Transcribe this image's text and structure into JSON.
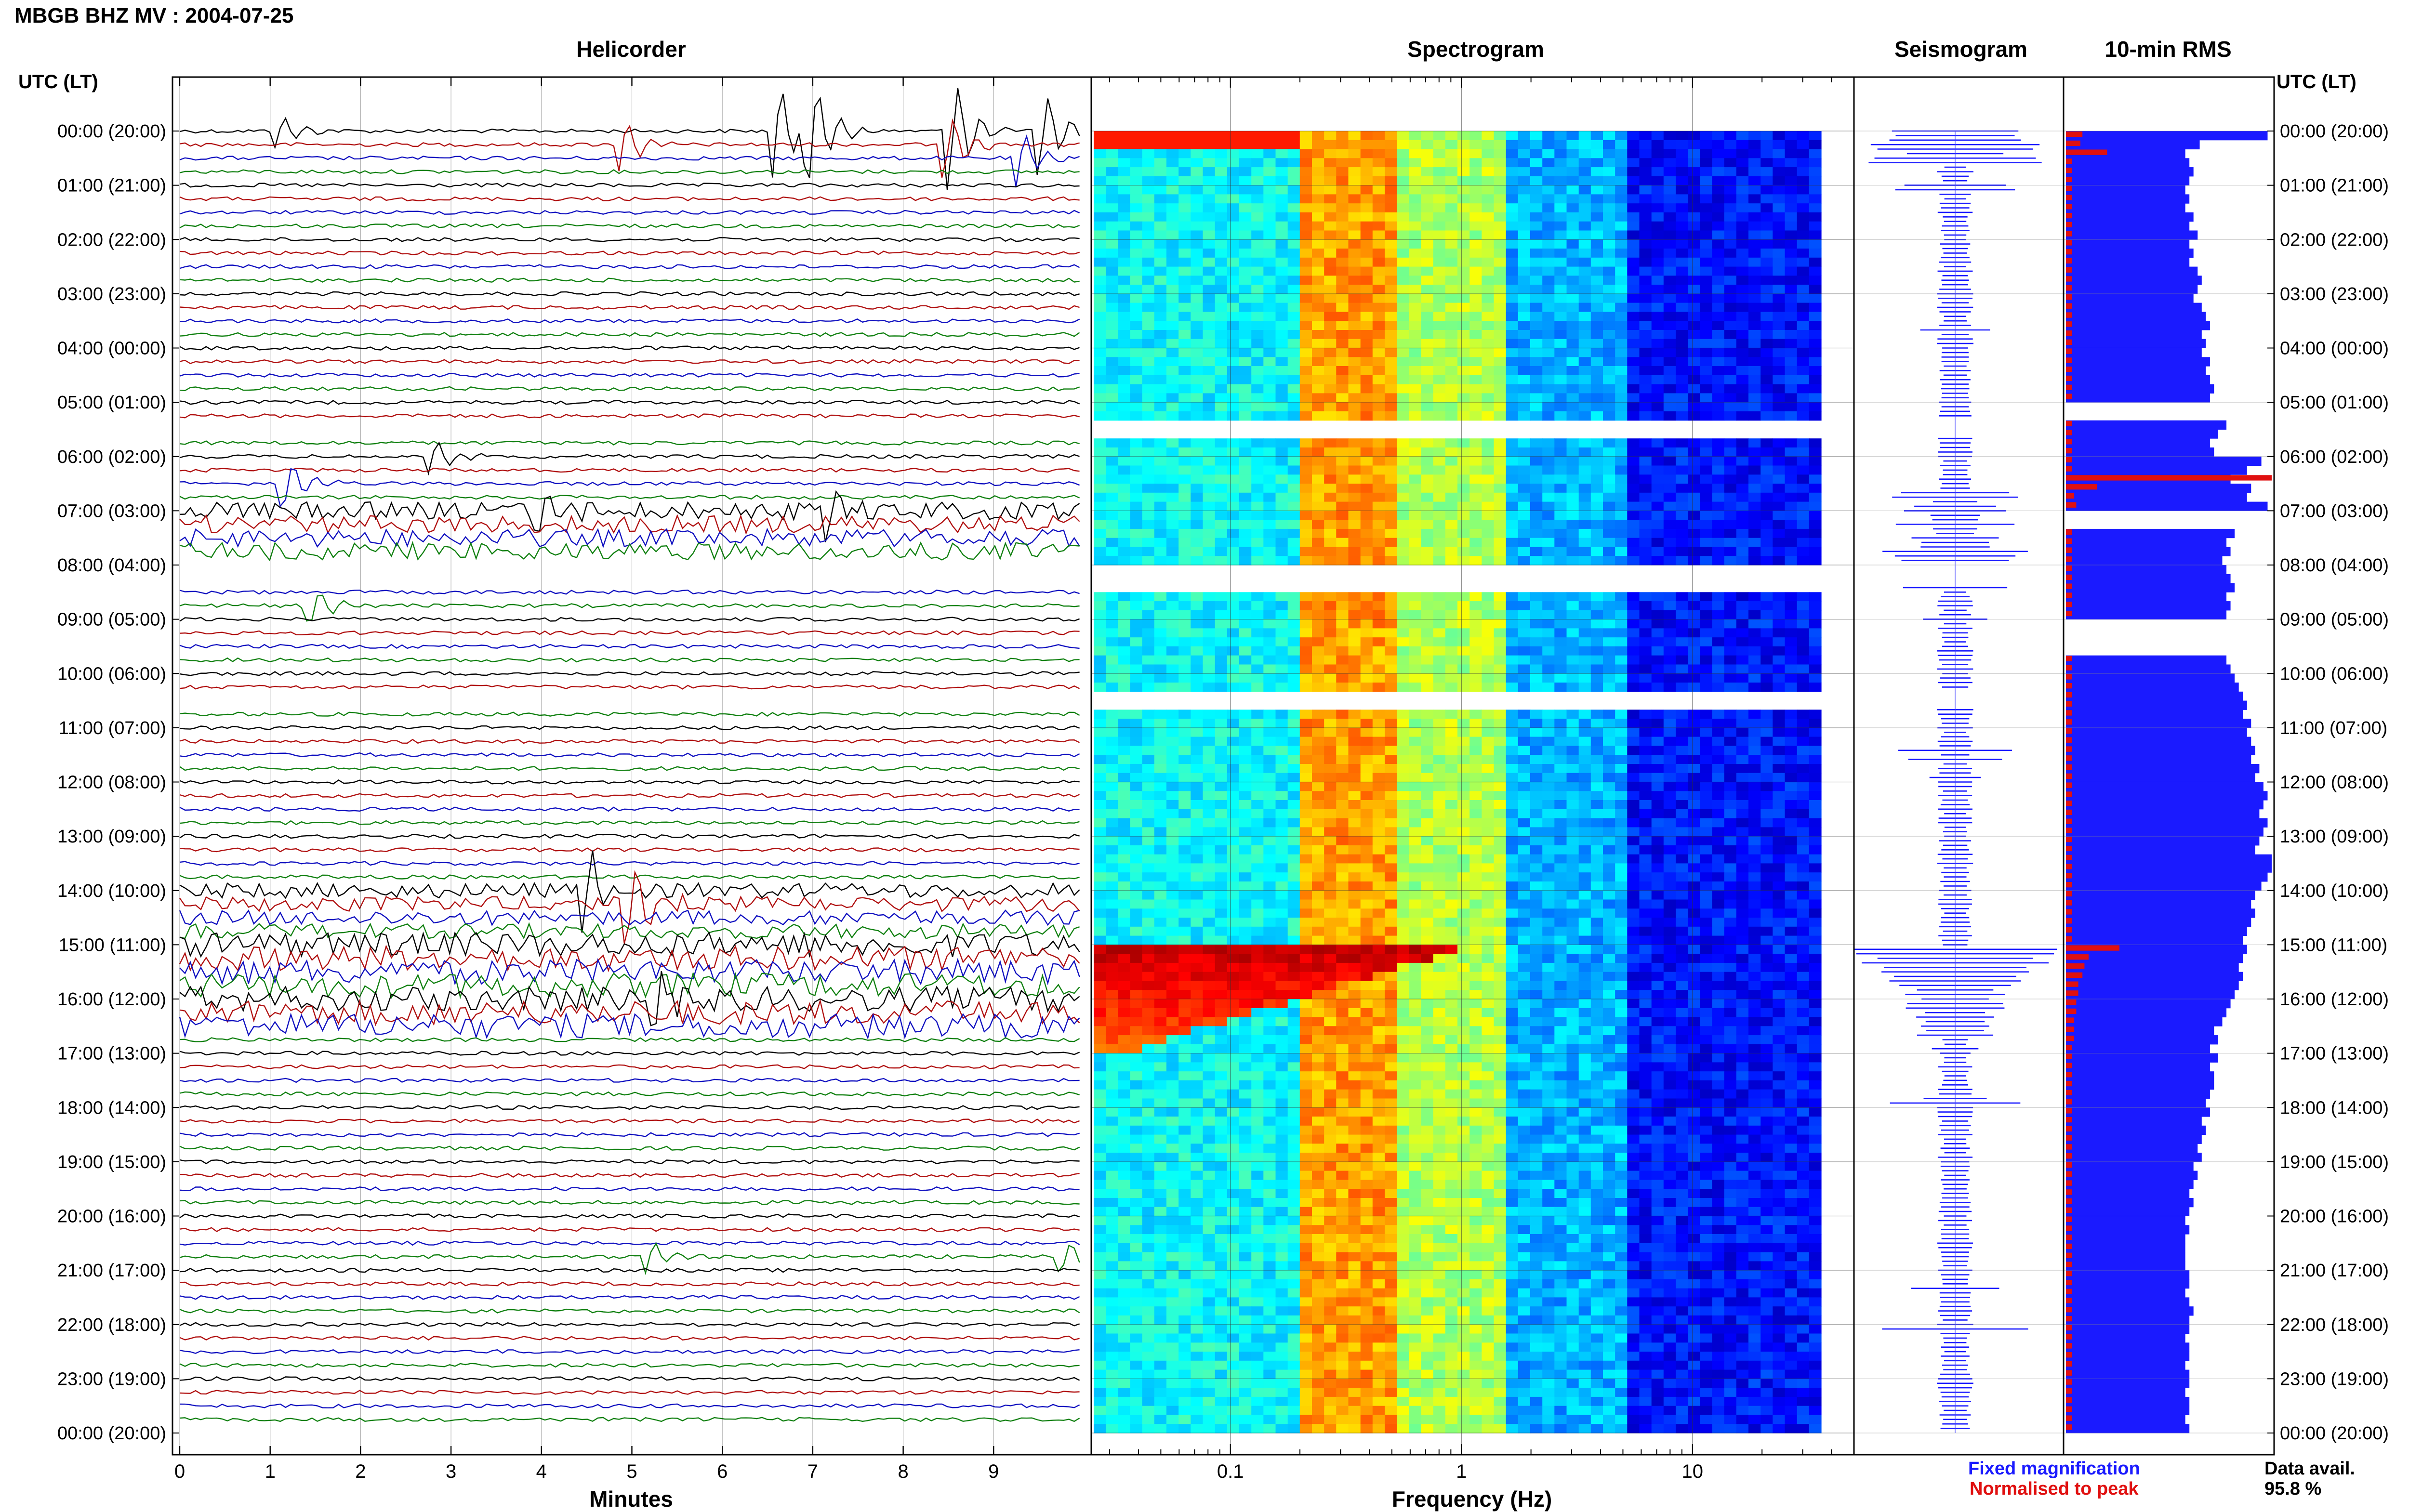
{
  "station_title": "MBGB BHZ MV : 2004-07-25",
  "panels": {
    "helicorder": "Helicorder",
    "spectrogram": "Spectrogram",
    "seismogram": "Seismogram",
    "rms": "10-min RMS"
  },
  "utc_header": "UTC (LT)",
  "hour_labels": [
    "00:00 (20:00)",
    "01:00 (21:00)",
    "02:00 (22:00)",
    "03:00 (23:00)",
    "04:00 (00:00)",
    "05:00 (01:00)",
    "06:00 (02:00)",
    "07:00 (03:00)",
    "08:00 (04:00)",
    "09:00 (05:00)",
    "10:00 (06:00)",
    "11:00 (07:00)",
    "12:00 (08:00)",
    "13:00 (09:00)",
    "14:00 (10:00)",
    "15:00 (11:00)",
    "16:00 (12:00)",
    "17:00 (13:00)",
    "18:00 (14:00)",
    "19:00 (15:00)",
    "20:00 (16:00)",
    "21:00 (17:00)",
    "22:00 (18:00)",
    "23:00 (19:00)",
    "00:00 (20:00)"
  ],
  "legend": {
    "fixed_label": "Fixed magnification",
    "normalised_label": "Normalised to peak",
    "fixed_color": "#1a1aff",
    "normalised_color": "#e01010"
  },
  "data_availability": {
    "label": "Data avail.",
    "value": "95.8 %"
  },
  "chart_data": [
    {
      "type": "line",
      "panel": "helicorder",
      "xlabel": "Minutes",
      "x_ticks": [
        "0",
        "1",
        "2",
        "3",
        "4",
        "5",
        "6",
        "7",
        "8",
        "9"
      ],
      "xlim": [
        0,
        10
      ],
      "ylim_hours": [
        0,
        24
      ],
      "trace_colors": [
        "#000000",
        "#b01010",
        "#1010c0",
        "#108010"
      ],
      "gaps_utc_hours": [
        [
          5.3,
          5.62
        ],
        [
          8.0,
          8.38
        ],
        [
          10.3,
          10.65
        ]
      ],
      "events": [
        {
          "hour": 0.0,
          "minute": 6.6,
          "amp": 1.6
        },
        {
          "hour": 0.0,
          "minute": 7.0,
          "amp": 1.9
        },
        {
          "hour": 0.0,
          "minute": 8.55,
          "amp": 1.8
        },
        {
          "hour": 0.05,
          "minute": 9.55,
          "amp": 1.4
        },
        {
          "hour": 0.1,
          "minute": 1.1,
          "amp": 0.5
        },
        {
          "hour": 0.2,
          "minute": 4.9,
          "amp": 0.9
        },
        {
          "hour": 0.3,
          "minute": 8.5,
          "amp": 1.1
        },
        {
          "hour": 0.38,
          "minute": 9.3,
          "amp": 0.9
        },
        {
          "hour": 5.5,
          "minute": 2.5,
          "amp": 0.8
        },
        {
          "hour": 5.5,
          "minute": 6.6,
          "amp": 0.7
        },
        {
          "hour": 5.5,
          "minute": 8.7,
          "amp": 0.7
        },
        {
          "hour": 6.0,
          "minute": 2.8,
          "amp": 0.6
        },
        {
          "hour": 6.5,
          "minute": 1.2,
          "amp": 0.8
        },
        {
          "hour": 7.0,
          "minute": 4.0,
          "amp": 0.9
        },
        {
          "hour": 7.1,
          "minute": 7.2,
          "amp": 0.9
        },
        {
          "hour": 8.7,
          "minute": 1.5,
          "amp": 0.6
        },
        {
          "hour": 14.0,
          "minute": 4.5,
          "amp": 1.4
        },
        {
          "hour": 14.3,
          "minute": 5.0,
          "amp": 1.3
        },
        {
          "hour": 16.1,
          "minute": 5.3,
          "amp": 0.9
        },
        {
          "hour": 20.8,
          "minute": 5.2,
          "amp": 0.5
        },
        {
          "hour": 20.8,
          "minute": 9.8,
          "amp": 0.5
        }
      ],
      "noisy_hours": [
        [
          6.9,
          7.9,
          0.65
        ],
        [
          15.0,
          16.6,
          0.9
        ],
        [
          14.0,
          15.0,
          0.55
        ]
      ]
    },
    {
      "type": "heatmap",
      "panel": "spectrogram",
      "xlabel": "Frequency (Hz)",
      "x_scale": "log",
      "x_ticks": [
        "0.1",
        "1",
        "10"
      ],
      "xlim": [
        0.025,
        50
      ],
      "ylim_hours": [
        0,
        24
      ],
      "colormap": "jet",
      "features": [
        {
          "description_hours": [
            15.0,
            17.0
          ],
          "freq_range": [
            0.03,
            1.0
          ]
        },
        {
          "description_hours": [
            0.0,
            0.3
          ],
          "freq_range": [
            0.03,
            0.2
          ]
        }
      ]
    },
    {
      "type": "bar",
      "panel": "seismogram",
      "ylim_hours": [
        0,
        24
      ],
      "color": "#1a1aff",
      "notes": "Compressed trace, largest amplitude near 15:00 UTC"
    },
    {
      "type": "bar",
      "panel": "rms",
      "title": "10-min RMS",
      "ylim_hours": [
        0,
        24
      ],
      "bar_color_fixed": "#1a1aff",
      "bar_color_normalised": "#e01010",
      "rms_fixed": [
        0.98,
        0.65,
        0.58,
        0.6,
        0.62,
        0.6,
        0.58,
        0.6,
        0.58,
        0.62,
        0.6,
        0.64,
        0.6,
        0.62,
        0.6,
        0.64,
        0.66,
        0.64,
        0.62,
        0.66,
        0.68,
        0.7,
        0.66,
        0.68,
        0.66,
        0.7,
        0.68,
        0.7,
        0.72,
        0.7,
        0.0,
        0.0,
        0.78,
        0.74,
        0.7,
        0.72,
        0.95,
        0.88,
        0.8,
        0.9,
        0.88,
        0.98,
        0.0,
        0.0,
        0.82,
        0.78,
        0.8,
        0.76,
        0.78,
        0.8,
        0.82,
        0.78,
        0.8,
        0.78,
        0.0,
        0.0,
        0.0,
        0.0,
        0.78,
        0.8,
        0.82,
        0.84,
        0.86,
        0.88,
        0.86,
        0.9,
        0.88,
        0.9,
        0.92,
        0.9,
        0.94,
        0.92,
        0.96,
        0.98,
        0.96,
        0.94,
        0.98,
        0.96,
        0.94,
        0.92,
        1.0,
        1.0,
        0.98,
        0.95,
        0.92,
        0.9,
        0.92,
        0.9,
        0.88,
        0.86,
        0.88,
        0.86,
        0.84,
        0.86,
        0.84,
        0.82,
        0.8,
        0.78,
        0.76,
        0.72,
        0.74,
        0.7,
        0.74,
        0.7,
        0.72,
        0.72,
        0.7,
        0.68,
        0.7,
        0.66,
        0.68,
        0.66,
        0.64,
        0.66,
        0.62,
        0.64,
        0.62,
        0.6,
        0.62,
        0.6,
        0.58,
        0.6,
        0.58,
        0.58,
        0.58,
        0.58,
        0.6,
        0.6,
        0.58,
        0.6,
        0.62,
        0.6,
        0.6,
        0.58,
        0.6,
        0.6,
        0.58,
        0.6,
        0.6,
        0.58,
        0.6,
        0.6,
        0.58,
        0.6
      ],
      "rms_normalised": [
        0.08,
        0.07,
        0.2,
        0.03,
        0.03,
        0.03,
        0.03,
        0.03,
        0.03,
        0.03,
        0.03,
        0.03,
        0.03,
        0.03,
        0.03,
        0.03,
        0.03,
        0.03,
        0.03,
        0.03,
        0.03,
        0.03,
        0.03,
        0.03,
        0.03,
        0.03,
        0.03,
        0.03,
        0.03,
        0.03,
        0.0,
        0.0,
        0.03,
        0.03,
        0.03,
        0.03,
        0.03,
        0.03,
        1.0,
        0.15,
        0.04,
        0.05,
        0.0,
        0.0,
        0.03,
        0.03,
        0.03,
        0.03,
        0.03,
        0.03,
        0.03,
        0.03,
        0.03,
        0.03,
        0.0,
        0.0,
        0.0,
        0.0,
        0.03,
        0.03,
        0.03,
        0.03,
        0.03,
        0.03,
        0.03,
        0.03,
        0.03,
        0.03,
        0.03,
        0.03,
        0.03,
        0.03,
        0.03,
        0.03,
        0.03,
        0.03,
        0.03,
        0.03,
        0.03,
        0.03,
        0.03,
        0.03,
        0.03,
        0.03,
        0.03,
        0.03,
        0.03,
        0.03,
        0.03,
        0.03,
        0.26,
        0.11,
        0.09,
        0.08,
        0.06,
        0.06,
        0.05,
        0.05,
        0.04,
        0.04,
        0.04,
        0.03,
        0.03,
        0.03,
        0.03,
        0.03,
        0.03,
        0.03,
        0.03,
        0.03,
        0.03,
        0.03,
        0.03,
        0.03,
        0.03,
        0.03,
        0.03,
        0.03,
        0.03,
        0.03,
        0.03,
        0.03,
        0.03,
        0.03,
        0.03,
        0.03,
        0.03,
        0.03,
        0.03,
        0.03,
        0.03,
        0.03,
        0.03,
        0.03,
        0.03,
        0.03,
        0.03,
        0.03,
        0.03,
        0.03,
        0.03,
        0.03,
        0.03,
        0.03
      ]
    }
  ]
}
